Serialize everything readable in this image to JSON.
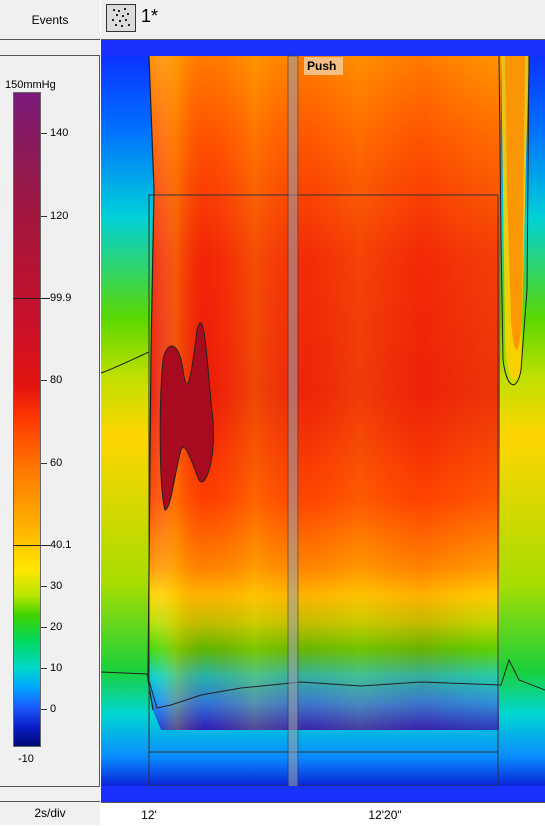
{
  "header": {
    "events_label": "Events",
    "trace_name": "1*"
  },
  "colorbar": {
    "unit_max_label": "150mmHg",
    "ticks": [
      "140",
      "120",
      "80",
      "60",
      "30",
      "20",
      "10",
      "0",
      "-10"
    ],
    "upper_threshold": "99.9",
    "lower_threshold": "40.1",
    "min_value": -10,
    "max_value": 150
  },
  "plot": {
    "event_marker_label": "Push",
    "x_ticks": [
      "12'",
      "12'20\""
    ],
    "scale_label": "2s/div"
  },
  "colors": {
    "event_bg": "#f5c28a",
    "panel_bg": "#f0f0f0"
  }
}
